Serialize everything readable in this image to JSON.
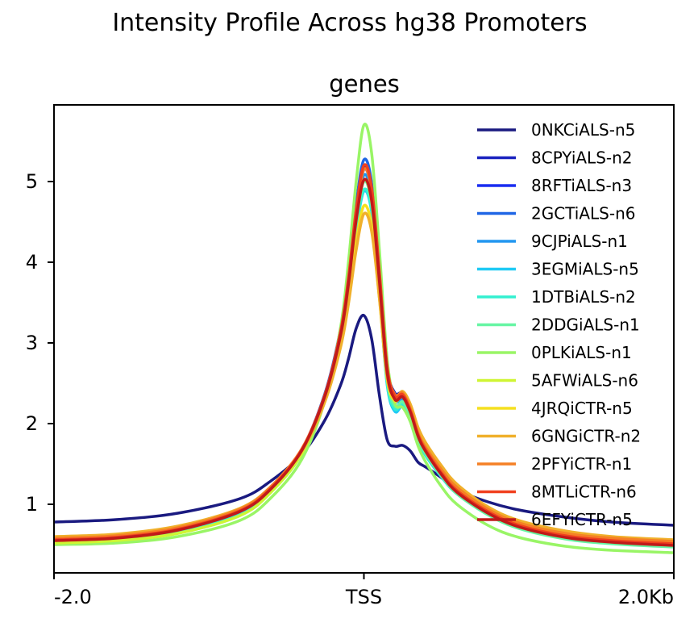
{
  "figure": {
    "title": "Intensity Profile Across hg38 Promoters"
  },
  "chart_data": {
    "type": "line",
    "title": "genes",
    "xlabel": "",
    "ylabel": "",
    "x_ticks": [
      {
        "x": -2.0,
        "label": "-2.0"
      },
      {
        "x": 0.0,
        "label": "TSS"
      },
      {
        "x": 2.0,
        "label": "2.0Kb"
      }
    ],
    "y_ticks": [
      1,
      2,
      3,
      4,
      5
    ],
    "xlim": [
      -2.0,
      2.0
    ],
    "ylim": [
      0.15,
      5.95
    ],
    "grid": false,
    "legend_position": "top-right",
    "x": [
      -2.0,
      -1.6,
      -1.2,
      -0.8,
      -0.6,
      -0.4,
      -0.25,
      -0.15,
      -0.1,
      -0.05,
      0.0,
      0.05,
      0.1,
      0.15,
      0.2,
      0.25,
      0.3,
      0.35,
      0.4,
      0.5,
      0.6,
      0.8,
      1.0,
      1.3,
      1.6,
      2.0
    ],
    "series": [
      {
        "name": "0NKCiALS-n5",
        "color": "#1a1a80",
        "values": [
          0.78,
          0.81,
          0.89,
          1.07,
          1.29,
          1.62,
          2.05,
          2.48,
          2.8,
          3.18,
          3.34,
          3.05,
          2.35,
          1.8,
          1.72,
          1.73,
          1.66,
          1.52,
          1.46,
          1.33,
          1.18,
          1.03,
          0.93,
          0.84,
          0.78,
          0.74
        ]
      },
      {
        "name": "8CPYiALS-n2",
        "color": "#1a22bf",
        "values": [
          0.58,
          0.61,
          0.7,
          0.92,
          1.2,
          1.68,
          2.38,
          3.15,
          3.8,
          4.62,
          5.18,
          4.9,
          3.85,
          2.7,
          2.38,
          2.38,
          2.18,
          1.88,
          1.68,
          1.4,
          1.18,
          0.92,
          0.75,
          0.62,
          0.56,
          0.52
        ]
      },
      {
        "name": "8RFTiALS-n3",
        "color": "#1a2df0",
        "values": [
          0.56,
          0.59,
          0.68,
          0.9,
          1.18,
          1.66,
          2.36,
          3.13,
          3.78,
          4.6,
          5.15,
          4.87,
          3.82,
          2.65,
          2.33,
          2.34,
          2.14,
          1.84,
          1.65,
          1.38,
          1.16,
          0.9,
          0.73,
          0.6,
          0.54,
          0.5
        ]
      },
      {
        "name": "2GCTiALS-n6",
        "color": "#1f66e5",
        "values": [
          0.55,
          0.58,
          0.67,
          0.89,
          1.18,
          1.67,
          2.38,
          3.18,
          3.86,
          4.72,
          5.27,
          4.98,
          3.9,
          2.72,
          2.35,
          2.36,
          2.15,
          1.85,
          1.66,
          1.38,
          1.16,
          0.9,
          0.73,
          0.59,
          0.53,
          0.49
        ]
      },
      {
        "name": "9CJPiALS-n1",
        "color": "#2196f0",
        "values": [
          0.54,
          0.57,
          0.66,
          0.88,
          1.17,
          1.65,
          2.35,
          3.12,
          3.75,
          4.55,
          5.08,
          4.8,
          3.76,
          2.6,
          2.28,
          2.3,
          2.1,
          1.81,
          1.63,
          1.36,
          1.15,
          0.89,
          0.72,
          0.59,
          0.53,
          0.49
        ]
      },
      {
        "name": "3EGMiALS-n5",
        "color": "#1fcaf5",
        "values": [
          0.54,
          0.57,
          0.66,
          0.88,
          1.16,
          1.63,
          2.32,
          3.05,
          3.65,
          4.4,
          4.88,
          4.62,
          3.62,
          2.48,
          2.15,
          2.22,
          2.06,
          1.78,
          1.6,
          1.34,
          1.13,
          0.88,
          0.71,
          0.58,
          0.52,
          0.48
        ]
      },
      {
        "name": "1DTBiALS-n2",
        "color": "#33f0d0",
        "values": [
          0.53,
          0.56,
          0.65,
          0.87,
          1.16,
          1.64,
          2.34,
          3.08,
          3.68,
          4.42,
          4.9,
          4.64,
          3.64,
          2.5,
          2.18,
          2.25,
          2.08,
          1.8,
          1.61,
          1.35,
          1.14,
          0.88,
          0.71,
          0.58,
          0.52,
          0.48
        ]
      },
      {
        "name": "2DDGiALS-n1",
        "color": "#66f5a3",
        "values": [
          0.52,
          0.55,
          0.64,
          0.86,
          1.15,
          1.63,
          2.33,
          3.1,
          3.72,
          4.5,
          5.0,
          4.72,
          3.7,
          2.55,
          2.22,
          2.27,
          2.1,
          1.81,
          1.62,
          1.35,
          1.13,
          0.87,
          0.7,
          0.57,
          0.51,
          0.47
        ]
      },
      {
        "name": "0PLKiALS-n1",
        "color": "#99f566",
        "values": [
          0.5,
          0.52,
          0.6,
          0.8,
          1.08,
          1.56,
          2.3,
          3.2,
          4.0,
          5.0,
          5.7,
          5.35,
          4.15,
          2.8,
          2.25,
          2.2,
          2.02,
          1.72,
          1.52,
          1.22,
          1.0,
          0.74,
          0.59,
          0.48,
          0.43,
          0.4
        ]
      },
      {
        "name": "5AFWiALS-n6",
        "color": "#cff533",
        "values": [
          0.52,
          0.55,
          0.64,
          0.86,
          1.15,
          1.63,
          2.33,
          3.1,
          3.72,
          4.52,
          5.02,
          4.75,
          3.75,
          2.62,
          2.3,
          2.33,
          2.14,
          1.84,
          1.65,
          1.38,
          1.16,
          0.9,
          0.73,
          0.6,
          0.54,
          0.5
        ]
      },
      {
        "name": "4JRQiCTR-n5",
        "color": "#f5e01f",
        "values": [
          0.57,
          0.6,
          0.7,
          0.92,
          1.2,
          1.66,
          2.32,
          3.0,
          3.55,
          4.25,
          4.7,
          4.45,
          3.55,
          2.55,
          2.28,
          2.35,
          2.18,
          1.88,
          1.7,
          1.42,
          1.2,
          0.93,
          0.76,
          0.63,
          0.57,
          0.53
        ]
      },
      {
        "name": "6GNGiCTR-n2",
        "color": "#f0b02b",
        "values": [
          0.6,
          0.63,
          0.73,
          0.95,
          1.22,
          1.66,
          2.28,
          2.95,
          3.48,
          4.15,
          4.6,
          4.38,
          3.55,
          2.58,
          2.32,
          2.4,
          2.24,
          1.95,
          1.76,
          1.48,
          1.25,
          0.97,
          0.8,
          0.67,
          0.6,
          0.56
        ]
      },
      {
        "name": "2PFYiCTR-n1",
        "color": "#f58026",
        "values": [
          0.58,
          0.61,
          0.71,
          0.94,
          1.22,
          1.69,
          2.36,
          3.12,
          3.76,
          4.6,
          5.15,
          4.88,
          3.85,
          2.7,
          2.36,
          2.38,
          2.18,
          1.88,
          1.7,
          1.43,
          1.21,
          0.94,
          0.77,
          0.64,
          0.58,
          0.54
        ]
      },
      {
        "name": "8MTLiCTR-n6",
        "color": "#f0401f",
        "values": [
          0.56,
          0.59,
          0.69,
          0.92,
          1.2,
          1.68,
          2.37,
          3.15,
          3.8,
          4.65,
          5.2,
          4.92,
          3.88,
          2.7,
          2.34,
          2.36,
          2.16,
          1.86,
          1.67,
          1.39,
          1.17,
          0.91,
          0.74,
          0.61,
          0.55,
          0.51
        ]
      },
      {
        "name": "6EFYiCTR-n5",
        "color": "#c01a1a",
        "values": [
          0.55,
          0.58,
          0.68,
          0.91,
          1.19,
          1.67,
          2.35,
          3.1,
          3.72,
          4.52,
          5.02,
          4.76,
          3.76,
          2.63,
          2.3,
          2.33,
          2.14,
          1.84,
          1.65,
          1.37,
          1.15,
          0.89,
          0.72,
          0.59,
          0.53,
          0.49
        ]
      }
    ]
  }
}
